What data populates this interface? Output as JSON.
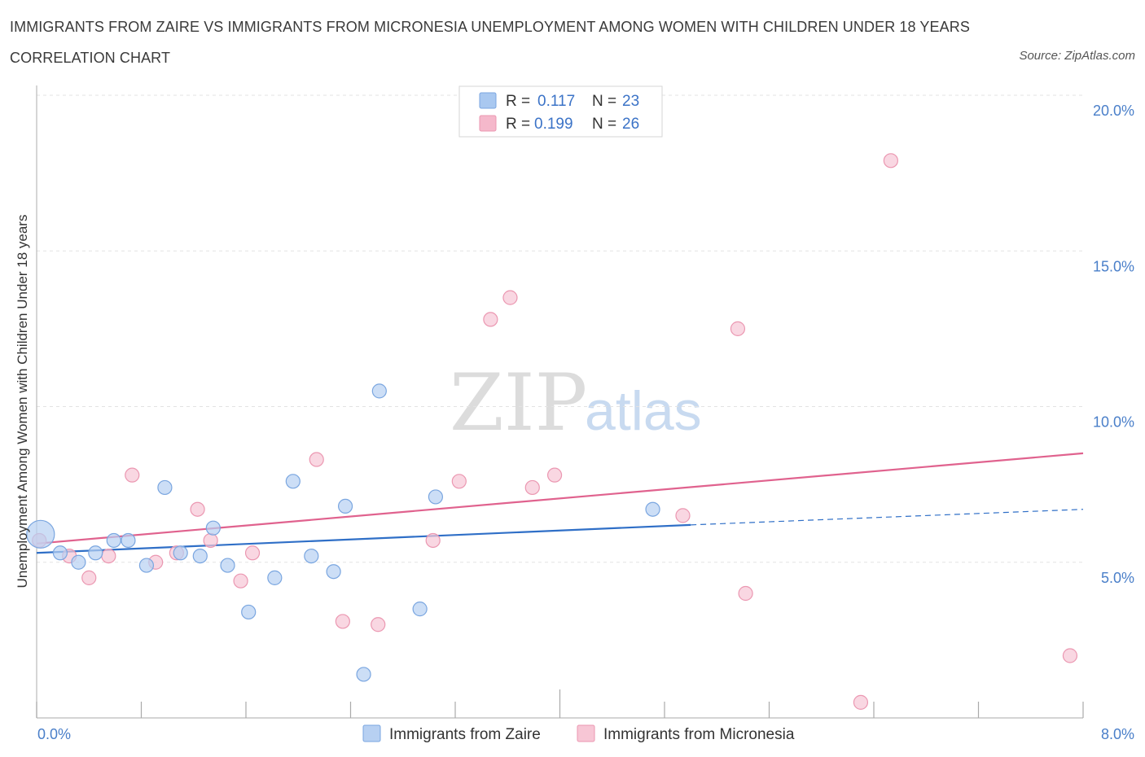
{
  "header": {
    "title": "IMMIGRANTS FROM ZAIRE VS IMMIGRANTS FROM MICRONESIA UNEMPLOYMENT AMONG WOMEN WITH CHILDREN UNDER 18 YEARS CORRELATION CHART",
    "source": "Source: ZipAtlas.com"
  },
  "watermark": {
    "zip": "ZIP",
    "atlas": "atlas"
  },
  "legend": {
    "r_label": "R =",
    "n_label": "N =",
    "rows": [
      {
        "r": "0.117",
        "n": "23",
        "color": "#a9c8f0"
      },
      {
        "r": "0.199",
        "n": "26",
        "color": "#f5b8cb"
      }
    ]
  },
  "colors": {
    "zaire_fill": "#b7d0f2",
    "zaire_stroke": "#7aa6e0",
    "zaire_line": "#2f6fc7",
    "micronesia_fill": "#f7c6d5",
    "micronesia_stroke": "#eb97b1",
    "micronesia_line": "#e0628e"
  },
  "chart_data": {
    "type": "scatter",
    "title": "IMMIGRANTS FROM ZAIRE VS IMMIGRANTS FROM MICRONESIA UNEMPLOYMENT AMONG WOMEN WITH CHILDREN UNDER 18 YEARS CORRELATION CHART",
    "xlabel": "",
    "ylabel": "Unemployment Among Women with Children Under 18 years",
    "xlim": [
      0,
      8
    ],
    "ylim": [
      0,
      20
    ],
    "x_tick_labels": [
      "0.0%",
      "8.0%"
    ],
    "y_ticks": [
      5,
      10,
      15,
      20
    ],
    "y_tick_labels": [
      "5.0%",
      "10.0%",
      "15.0%",
      "20.0%"
    ],
    "grid": true,
    "legend_position": "top-center",
    "series": [
      {
        "name": "Immigrants from Zaire",
        "r": 0.117,
        "n": 23,
        "trend": {
          "x0": 0.0,
          "y0": 5.3,
          "x1": 5.0,
          "y1": 6.2,
          "dashed_to_x": 8.0,
          "dashed_to_y": 6.7
        },
        "points": [
          {
            "x": 0.03,
            "y": 5.9,
            "size": "large"
          },
          {
            "x": 0.18,
            "y": 5.3
          },
          {
            "x": 0.32,
            "y": 5.0
          },
          {
            "x": 0.45,
            "y": 5.3
          },
          {
            "x": 0.59,
            "y": 5.7
          },
          {
            "x": 0.7,
            "y": 5.7
          },
          {
            "x": 0.84,
            "y": 4.9
          },
          {
            "x": 0.98,
            "y": 7.4
          },
          {
            "x": 1.1,
            "y": 5.3
          },
          {
            "x": 1.25,
            "y": 5.2
          },
          {
            "x": 1.35,
            "y": 6.1
          },
          {
            "x": 1.46,
            "y": 4.9
          },
          {
            "x": 1.62,
            "y": 3.4
          },
          {
            "x": 1.82,
            "y": 4.5
          },
          {
            "x": 1.96,
            "y": 7.6
          },
          {
            "x": 2.1,
            "y": 5.2
          },
          {
            "x": 2.36,
            "y": 6.8
          },
          {
            "x": 2.27,
            "y": 4.7
          },
          {
            "x": 2.5,
            "y": 1.4
          },
          {
            "x": 2.62,
            "y": 10.5
          },
          {
            "x": 2.93,
            "y": 3.5
          },
          {
            "x": 3.05,
            "y": 7.1
          },
          {
            "x": 4.71,
            "y": 6.7
          }
        ]
      },
      {
        "name": "Immigrants from Micronesia",
        "r": 0.199,
        "n": 26,
        "trend": {
          "x0": 0.0,
          "y0": 5.6,
          "x1": 8.0,
          "y1": 8.5
        },
        "points": [
          {
            "x": 0.02,
            "y": 5.7
          },
          {
            "x": 0.25,
            "y": 5.2
          },
          {
            "x": 0.4,
            "y": 4.5
          },
          {
            "x": 0.55,
            "y": 5.2
          },
          {
            "x": 0.73,
            "y": 7.8
          },
          {
            "x": 0.91,
            "y": 5.0
          },
          {
            "x": 1.07,
            "y": 5.3
          },
          {
            "x": 1.23,
            "y": 6.7
          },
          {
            "x": 1.33,
            "y": 5.7
          },
          {
            "x": 1.56,
            "y": 4.4
          },
          {
            "x": 1.65,
            "y": 5.3
          },
          {
            "x": 2.14,
            "y": 8.3
          },
          {
            "x": 2.34,
            "y": 3.1
          },
          {
            "x": 2.61,
            "y": 3.0
          },
          {
            "x": 3.03,
            "y": 5.7
          },
          {
            "x": 3.23,
            "y": 7.6
          },
          {
            "x": 3.47,
            "y": 12.8
          },
          {
            "x": 3.62,
            "y": 13.5
          },
          {
            "x": 3.79,
            "y": 7.4
          },
          {
            "x": 3.96,
            "y": 7.8
          },
          {
            "x": 4.94,
            "y": 6.5
          },
          {
            "x": 5.36,
            "y": 12.5
          },
          {
            "x": 5.42,
            "y": 4.0
          },
          {
            "x": 6.3,
            "y": 0.5
          },
          {
            "x": 6.53,
            "y": 17.9
          },
          {
            "x": 7.9,
            "y": 2.0
          }
        ]
      }
    ]
  }
}
